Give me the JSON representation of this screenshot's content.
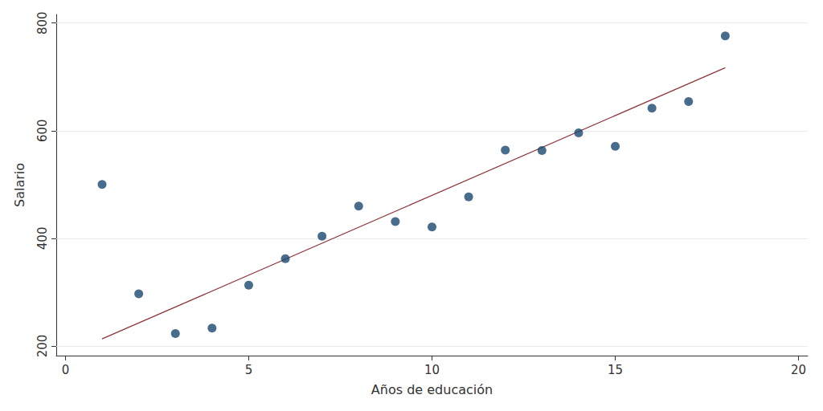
{
  "chart_data": {
    "type": "scatter",
    "x_label": "Años de educación",
    "y_label": "Salario",
    "xlim": [
      -0.25,
      20.25
    ],
    "xticks": [
      0,
      5,
      10,
      15,
      20
    ],
    "ylim": [
      182,
      816
    ],
    "yticks": [
      200,
      400,
      600,
      800
    ],
    "grid": true,
    "series": [
      {
        "type": "scatter",
        "color": "#1a476f",
        "marker": "circle",
        "x": [
          1,
          2,
          3,
          4,
          5,
          6,
          7,
          8,
          9,
          10,
          11,
          12,
          13,
          14,
          15,
          16,
          17,
          18
        ],
        "values": [
          500,
          297,
          223,
          233,
          313,
          362,
          404,
          460,
          431,
          421,
          477,
          564,
          563,
          596,
          571,
          642,
          654,
          776
        ]
      },
      {
        "type": "line",
        "color": "#90353b",
        "line_style": "solid",
        "x": [
          1,
          18
        ],
        "values": [
          213,
          717
        ]
      }
    ]
  }
}
